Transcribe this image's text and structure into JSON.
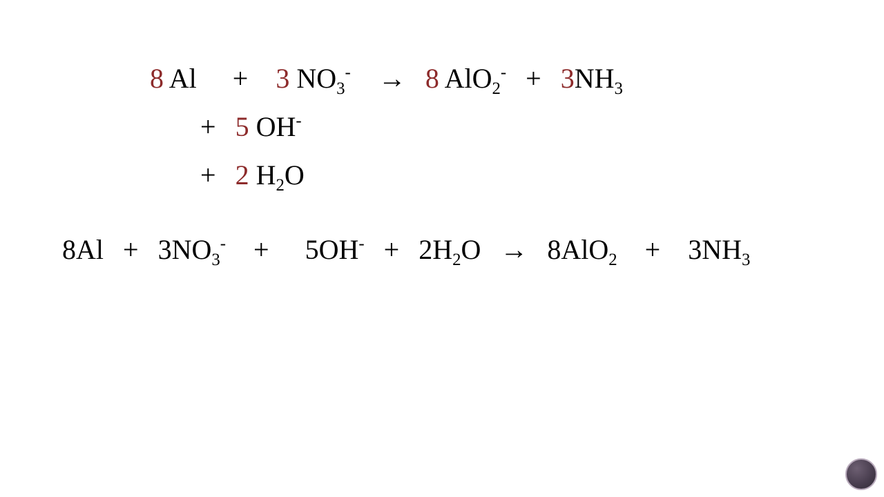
{
  "colors": {
    "coefficient": "#8d2b2b",
    "text": "#000000",
    "background": "#ffffff",
    "logo_border": "#b9abbc",
    "logo_fill_a": "#6d5f72",
    "logo_fill_b": "#4a3f50",
    "logo_fill_c": "#2f2a34"
  },
  "font": {
    "family": "Georgia serif",
    "size_pt": 40
  },
  "equation_top": {
    "line1": {
      "c1": "8",
      "t1": " Al",
      "plus1": "+",
      "c2": "3",
      "t2": " NO",
      "t2_sub": "3",
      "t2_sup": "-",
      "arrow": "→",
      "c3": "8",
      "t3": " AlO",
      "t3_sub": "2",
      "t3_sup": "-",
      "plus2": "+",
      "c4": "3",
      "t4": "NH",
      "t4_sub": "3"
    },
    "line2": {
      "plus": "+",
      "c": "5",
      "t": " OH",
      "sup": "-"
    },
    "line3": {
      "plus": "+",
      "c": "2",
      "t": " H",
      "sub1": "2",
      "t2": "O"
    }
  },
  "equation_bottom": {
    "t1": "8Al",
    "plus1": "+",
    "t2": "3NO",
    "t2_sub": "3",
    "t2_sup": "-",
    "plus2": "+",
    "t3": "5OH",
    "t3_sup": "-",
    "plus3": "+",
    "t4": "2H",
    "t4_sub": "2",
    "t4b": "O",
    "arrow": "→",
    "t5": "8AlO",
    "t5_sub": "2",
    "plus4": "+",
    "t6": "3NH",
    "t6_sub": "3"
  }
}
